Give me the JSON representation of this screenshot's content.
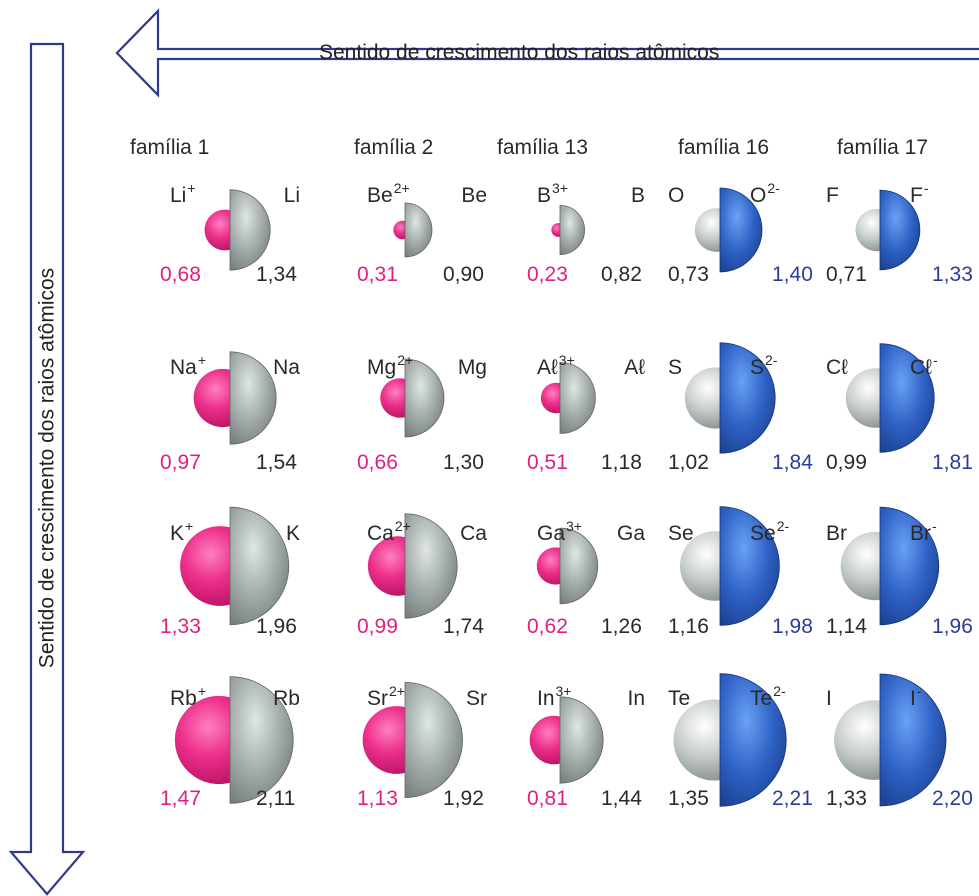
{
  "horizontal_arrow_label": "Sentido de crescimento dos raios atômicos",
  "vertical_arrow_label": "Sentido de crescimento dos raios atômicos",
  "colors": {
    "cation": "#e0207e",
    "atom_shell": "#9aa3a0",
    "anion": "#2b5cc0",
    "arrow": "#2e3a8c",
    "anion_text": "#2e3d94"
  },
  "families": [
    {
      "label": "família 1",
      "kind": "cation",
      "rows": [
        {
          "ion": "Li",
          "ion_charge": "+",
          "atom": "Li",
          "ion_radius": "0,68",
          "atom_radius": "1,34"
        },
        {
          "ion": "Na",
          "ion_charge": "+",
          "atom": "Na",
          "ion_radius": "0,97",
          "atom_radius": "1,54"
        },
        {
          "ion": "K",
          "ion_charge": "+",
          "atom": "K",
          "ion_radius": "1,33",
          "atom_radius": "1,96"
        },
        {
          "ion": "Rb",
          "ion_charge": "+",
          "atom": "Rb",
          "ion_radius": "1,47",
          "atom_radius": "2,11"
        }
      ]
    },
    {
      "label": "família 2",
      "kind": "cation",
      "rows": [
        {
          "ion": "Be",
          "ion_charge": "2+",
          "atom": "Be",
          "ion_radius": "0,31",
          "atom_radius": "0,90"
        },
        {
          "ion": "Mg",
          "ion_charge": "2+",
          "atom": "Mg",
          "ion_radius": "0,66",
          "atom_radius": "1,30"
        },
        {
          "ion": "Ca",
          "ion_charge": "2+",
          "atom": "Ca",
          "ion_radius": "0,99",
          "atom_radius": "1,74"
        },
        {
          "ion": "Sr",
          "ion_charge": "2+",
          "atom": "Sr",
          "ion_radius": "1,13",
          "atom_radius": "1,92"
        }
      ]
    },
    {
      "label": "família 13",
      "kind": "cation",
      "rows": [
        {
          "ion": "B",
          "ion_charge": "3+",
          "atom": "B",
          "ion_radius": "0,23",
          "atom_radius": "0,82"
        },
        {
          "ion": "Aℓ",
          "ion_charge": "3+",
          "atom": "Aℓ",
          "ion_radius": "0,51",
          "atom_radius": "1,18"
        },
        {
          "ion": "Ga",
          "ion_charge": "3+",
          "atom": "Ga",
          "ion_radius": "0,62",
          "atom_radius": "1,26"
        },
        {
          "ion": "In",
          "ion_charge": "3+",
          "atom": "In",
          "ion_radius": "0,81",
          "atom_radius": "1,44"
        }
      ]
    },
    {
      "label": "família 16",
      "kind": "anion",
      "rows": [
        {
          "ion": "O",
          "ion_charge": "2-",
          "atom": "O",
          "ion_radius": "1,40",
          "atom_radius": "0,73"
        },
        {
          "ion": "S",
          "ion_charge": "2-",
          "atom": "S",
          "ion_radius": "1,84",
          "atom_radius": "1,02"
        },
        {
          "ion": "Se",
          "ion_charge": "2-",
          "atom": "Se",
          "ion_radius": "1,98",
          "atom_radius": "1,16"
        },
        {
          "ion": "Te",
          "ion_charge": "2-",
          "atom": "Te",
          "ion_radius": "2,21",
          "atom_radius": "1,35"
        }
      ]
    },
    {
      "label": "família 17",
      "kind": "anion",
      "rows": [
        {
          "ion": "F",
          "ion_charge": "-",
          "atom": "F",
          "ion_radius": "1,33",
          "atom_radius": "0,71"
        },
        {
          "ion": "Cℓ",
          "ion_charge": "-",
          "atom": "Cℓ",
          "ion_radius": "1,81",
          "atom_radius": "0,99"
        },
        {
          "ion": "Br",
          "ion_charge": "-",
          "atom": "Br",
          "ion_radius": "1,96",
          "atom_radius": "1,14"
        },
        {
          "ion": "I",
          "ion_charge": "-",
          "atom": "I",
          "ion_radius": "2,20",
          "atom_radius": "1,33"
        }
      ]
    }
  ]
}
